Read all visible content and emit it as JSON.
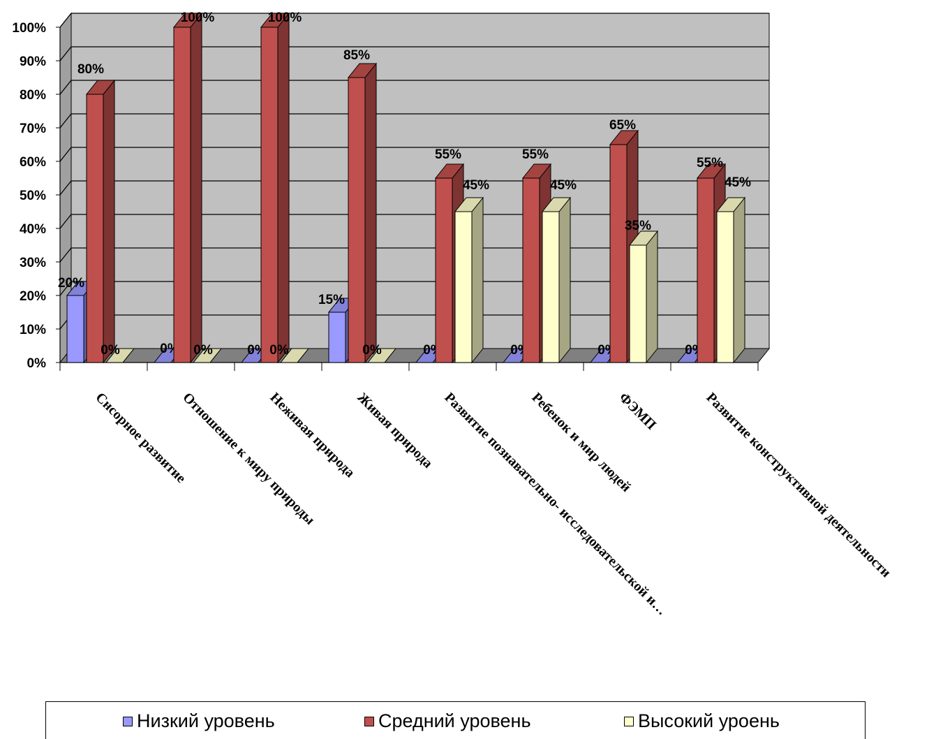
{
  "chart_data": {
    "type": "bar",
    "title": "",
    "xlabel": "",
    "ylabel": "",
    "ylim": [
      0,
      100
    ],
    "y_unit": "%",
    "y_ticks": [
      "0%",
      "10%",
      "20%",
      "30%",
      "40%",
      "50%",
      "60%",
      "70%",
      "80%",
      "90%",
      "100%"
    ],
    "grid": true,
    "legend_position": "bottom",
    "categories": [
      "Снсорное развитие",
      "Отношение к миру природы",
      "Неживая природа",
      "Живая природа",
      "Развитие познавательно- исследовательской и…",
      "Ребенок и мир людей",
      "ФЭМП",
      "Развитие конструктивной деятельности"
    ],
    "series": [
      {
        "name": "Низкий уровень",
        "color": "#9999ff",
        "values": [
          20,
          0,
          0,
          15,
          0,
          0,
          0,
          0
        ],
        "labels": [
          "20%",
          "0%",
          "0%",
          "15%",
          "0%",
          "0%",
          "0%",
          "0%"
        ]
      },
      {
        "name": "Средний уровень",
        "color": "#c0504d",
        "values": [
          80,
          100,
          100,
          85,
          55,
          55,
          65,
          55
        ],
        "labels": [
          "80%",
          "100%",
          "100%",
          "85%",
          "55%",
          "55%",
          "65%",
          "55%"
        ]
      },
      {
        "name": "Высокий уроень",
        "color": "#ffffcc",
        "values": [
          0,
          0,
          0,
          0,
          45,
          45,
          35,
          45
        ],
        "labels": [
          "0%",
          "0%",
          "0%",
          "0%",
          "45%",
          "45%",
          "35%",
          "45%"
        ]
      }
    ],
    "colors": {
      "wall": "#c0c0c0",
      "floor": "#808080",
      "side_wall": "#a0a0a0",
      "grid": "#000000"
    }
  }
}
